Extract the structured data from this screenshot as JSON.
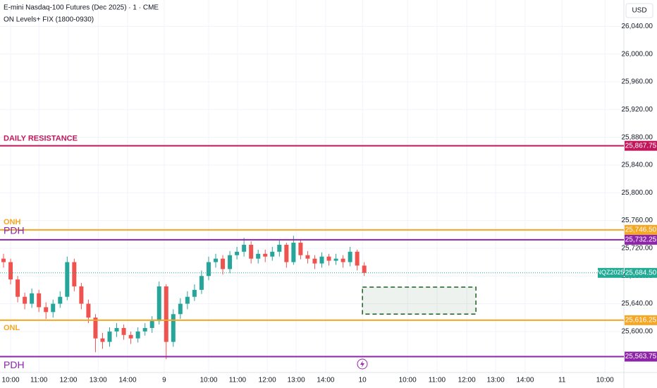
{
  "header": {
    "title": "E-mini Nasdaq-100 Futures (Dec 2025) · 1 · CME",
    "indicator": "ON Levels+ FIX (1800-0930)",
    "currency": "USD"
  },
  "chart_data": {
    "type": "candlestick",
    "x": [
      0.12,
      0.36,
      0.6,
      0.84,
      1.08,
      1.32,
      1.56,
      1.8,
      2.04,
      2.28,
      2.52,
      2.76,
      3.0,
      3.24,
      3.48,
      3.72,
      3.96,
      4.2,
      4.44,
      4.68,
      4.92,
      5.16,
      5.4,
      5.64,
      5.88,
      6.12,
      6.36,
      6.6,
      6.84,
      7.08,
      7.32,
      7.56,
      7.8,
      8.04,
      8.28,
      8.52,
      8.76,
      9.0,
      9.24,
      9.48,
      9.72,
      9.96,
      10.2,
      10.44,
      10.68,
      10.92,
      11.16,
      11.4,
      11.64,
      11.88,
      12.12,
      12.36
    ],
    "open": [
      25705,
      25700,
      25675,
      25650,
      25640,
      25655,
      25635,
      25628,
      25640,
      25650,
      25700,
      25665,
      25640,
      25620,
      25590,
      25585,
      25600,
      25605,
      25595,
      25590,
      25600,
      25605,
      25615,
      25665,
      25585,
      25625,
      25640,
      25650,
      25660,
      25680,
      25700,
      25705,
      25690,
      25710,
      25715,
      25725,
      25705,
      25712,
      25708,
      25715,
      25725,
      25700,
      25728,
      25710,
      25705,
      25698,
      25708,
      25702,
      25705,
      25700,
      25715,
      25695
    ],
    "high": [
      25712,
      25705,
      25680,
      25656,
      25662,
      25660,
      25642,
      25646,
      25658,
      25708,
      25705,
      25670,
      25646,
      25625,
      25598,
      25606,
      25612,
      25610,
      25600,
      25606,
      25612,
      25622,
      25672,
      25668,
      25632,
      25648,
      25658,
      25668,
      25688,
      25708,
      25712,
      25710,
      25716,
      25722,
      25735,
      25730,
      25718,
      25718,
      25722,
      25732,
      25728,
      25738,
      25732,
      25716,
      25710,
      25714,
      25712,
      25712,
      25710,
      25722,
      25718,
      25700
    ],
    "low": [
      25692,
      25668,
      25642,
      25632,
      25634,
      25628,
      25618,
      25620,
      25634,
      25645,
      25658,
      25632,
      25612,
      25570,
      25575,
      25578,
      25592,
      25588,
      25582,
      25584,
      25594,
      25598,
      25610,
      25560,
      25578,
      25618,
      25632,
      25644,
      25654,
      25674,
      25692,
      25682,
      25684,
      25704,
      25708,
      25698,
      25698,
      25700,
      25702,
      25708,
      25692,
      25696,
      25704,
      25698,
      25690,
      25692,
      25695,
      25696,
      25692,
      25694,
      25688,
      25680
    ],
    "close": [
      25700,
      25675,
      25650,
      25640,
      25655,
      25635,
      25628,
      25640,
      25650,
      25700,
      25665,
      25640,
      25620,
      25590,
      25585,
      25600,
      25605,
      25595,
      25590,
      25600,
      25605,
      25615,
      25665,
      25585,
      25625,
      25640,
      25650,
      25660,
      25680,
      25700,
      25705,
      25690,
      25710,
      25715,
      25725,
      25705,
      25712,
      25708,
      25715,
      25725,
      25700,
      25728,
      25710,
      25705,
      25698,
      25708,
      25702,
      25705,
      25700,
      25715,
      25695,
      25684.5
    ],
    "up_color": "#26a69a",
    "down_color": "#ef5350",
    "xlim": [
      0,
      21.17
    ],
    "xticks": [
      {
        "value": 0.36,
        "label": "10:00"
      },
      {
        "value": 1.32,
        "label": "11:00"
      },
      {
        "value": 2.32,
        "label": "12:00"
      },
      {
        "value": 3.33,
        "label": "13:00"
      },
      {
        "value": 4.33,
        "label": "14:00"
      },
      {
        "value": 5.57,
        "label": "9"
      },
      {
        "value": 7.08,
        "label": "10:00"
      },
      {
        "value": 8.06,
        "label": "11:00"
      },
      {
        "value": 9.07,
        "label": "12:00"
      },
      {
        "value": 10.05,
        "label": "13:00"
      },
      {
        "value": 11.05,
        "label": "14:00"
      },
      {
        "value": 12.3,
        "label": "10"
      },
      {
        "value": 13.83,
        "label": "10:00"
      },
      {
        "value": 14.83,
        "label": "11:00"
      },
      {
        "value": 15.84,
        "label": "12:00"
      },
      {
        "value": 16.82,
        "label": "13:00"
      },
      {
        "value": 17.82,
        "label": "14:00"
      },
      {
        "value": 19.07,
        "label": "11"
      },
      {
        "value": 20.53,
        "label": "10:00"
      }
    ],
    "ylim": [
      25549,
      26078
    ],
    "yticks": [
      {
        "value": 26040,
        "label": "26,040.00"
      },
      {
        "value": 26000,
        "label": "26,000.00"
      },
      {
        "value": 25960,
        "label": "25,960.00"
      },
      {
        "value": 25920,
        "label": "25,920.00"
      },
      {
        "value": 25880,
        "label": "25,880.00"
      },
      {
        "value": 25840,
        "label": "25,840.00"
      },
      {
        "value": 25800,
        "label": "25,800.00"
      },
      {
        "value": 25760,
        "label": "25,760.00"
      },
      {
        "value": 25720,
        "label": "25,720.00"
      },
      {
        "value": 25680,
        "label": "25,680.00"
      },
      {
        "value": 25640,
        "label": "25,640.00"
      },
      {
        "value": 25600,
        "label": "25,600.00"
      }
    ],
    "grid": true,
    "levels": [
      {
        "name": "DAILY RESISTANCE",
        "value": 25867.75,
        "value_label": "25,867.75",
        "color": "#c2185b"
      },
      {
        "name": "ONH",
        "value": 25746.5,
        "value_label": "25,746.50",
        "color": "#f5a623"
      },
      {
        "name": "PDH",
        "value": 25732.25,
        "value_label": "25,732.25",
        "color": "#8e24aa"
      },
      {
        "name": "ONL",
        "value": 25616.25,
        "value_label": "25,616.25",
        "color": "#f5a623"
      },
      {
        "name": "PDH",
        "value": 25563.75,
        "value_label": "25,563.75",
        "color": "#8e24aa"
      }
    ],
    "last": {
      "name": "NQZ2025",
      "value": 25684.5,
      "value_label": "25,684.50",
      "color": "#22ab94"
    },
    "zone": {
      "x": [
        12.3,
        16.15
      ],
      "y": [
        25625,
        25664
      ],
      "color": "#1b5e20"
    }
  }
}
